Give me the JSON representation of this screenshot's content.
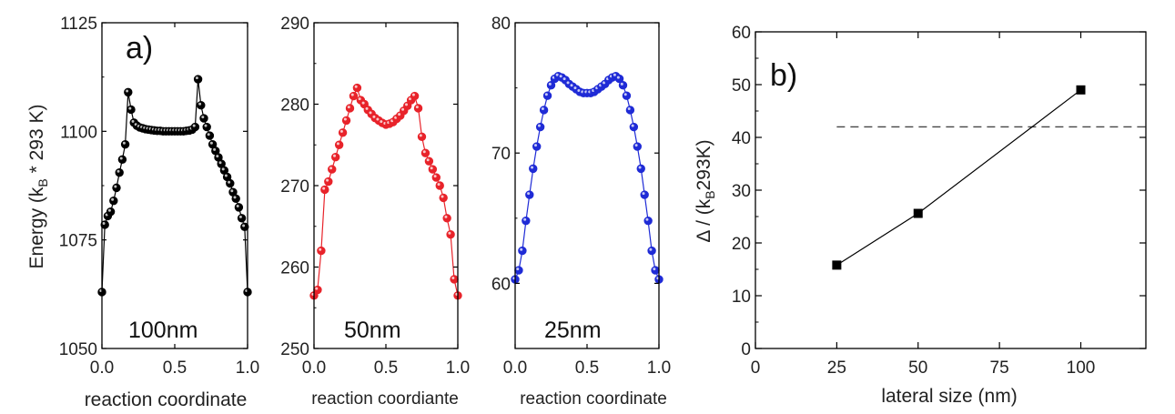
{
  "chart_data": [
    {
      "type": "line",
      "panel_label": "a)",
      "ylabel_main": "Energy (k",
      "ylabel_sub": "B",
      "ylabel_rest": " * 293 K)",
      "xlabel": "reaction coordinate",
      "annotation": "100nm",
      "xlim": [
        0.0,
        1.0
      ],
      "ylim": [
        1050,
        1125
      ],
      "xticks": [
        "0.0",
        "0.5",
        "1.0"
      ],
      "yticks": [
        "1050",
        "1075",
        "1100",
        "1125"
      ],
      "series": [
        {
          "color": "#000000",
          "x": [
            0.0,
            0.02,
            0.04,
            0.06,
            0.08,
            0.1,
            0.12,
            0.14,
            0.16,
            0.18,
            0.2,
            0.22,
            0.24,
            0.26,
            0.28,
            0.3,
            0.32,
            0.34,
            0.36,
            0.38,
            0.4,
            0.42,
            0.44,
            0.46,
            0.48,
            0.5,
            0.52,
            0.54,
            0.56,
            0.58,
            0.6,
            0.62,
            0.64,
            0.66,
            0.68,
            0.7,
            0.72,
            0.74,
            0.76,
            0.78,
            0.8,
            0.82,
            0.84,
            0.86,
            0.88,
            0.9,
            0.92,
            0.94,
            0.96,
            0.98,
            1.0
          ],
          "y": [
            1063.0,
            1078.5,
            1080.5,
            1081.5,
            1084.0,
            1087.0,
            1090.5,
            1093.5,
            1097.0,
            1109.0,
            1105.0,
            1102.0,
            1101.3,
            1100.9,
            1100.7,
            1100.5,
            1100.4,
            1100.3,
            1100.2,
            1100.1,
            1100.1,
            1100.0,
            1100.0,
            1100.0,
            1100.0,
            1100.0,
            1100.0,
            1100.0,
            1100.0,
            1100.1,
            1100.2,
            1100.4,
            1101.0,
            1112.0,
            1106.0,
            1103.0,
            1101.0,
            1099.0,
            1097.0,
            1095.5,
            1094.0,
            1092.5,
            1091.0,
            1089.5,
            1088.0,
            1086.0,
            1084.5,
            1082.5,
            1080.0,
            1078.0,
            1063.0
          ]
        }
      ]
    },
    {
      "type": "line",
      "xlabel": "reaction coordiante",
      "annotation": "50nm",
      "xlim": [
        0.0,
        1.0
      ],
      "ylim": [
        250,
        290
      ],
      "xticks": [
        "0.0",
        "0.5",
        "1.0"
      ],
      "yticks": [
        "250",
        "260",
        "270",
        "280",
        "290"
      ],
      "series": [
        {
          "color": "#e8232a",
          "x": [
            0.0,
            0.025,
            0.05,
            0.075,
            0.1,
            0.125,
            0.15,
            0.175,
            0.2,
            0.225,
            0.25,
            0.275,
            0.3,
            0.325,
            0.35,
            0.375,
            0.4,
            0.425,
            0.45,
            0.475,
            0.5,
            0.525,
            0.55,
            0.575,
            0.6,
            0.625,
            0.65,
            0.675,
            0.7,
            0.725,
            0.75,
            0.775,
            0.8,
            0.825,
            0.85,
            0.875,
            0.9,
            0.925,
            0.95,
            0.975,
            1.0
          ],
          "y": [
            256.5,
            257.2,
            262.0,
            269.5,
            270.5,
            272.0,
            273.5,
            275.0,
            276.5,
            278.0,
            279.5,
            281.0,
            282.0,
            280.5,
            280.0,
            279.3,
            278.8,
            278.3,
            278.0,
            277.7,
            277.5,
            277.6,
            277.8,
            278.2,
            278.6,
            279.2,
            279.8,
            280.5,
            281.0,
            279.5,
            276.0,
            274.0,
            273.0,
            272.0,
            271.0,
            270.0,
            268.5,
            266.0,
            264.0,
            258.5,
            256.5
          ]
        }
      ]
    },
    {
      "type": "line",
      "xlabel": "reaction coordinate",
      "annotation": "25nm",
      "xlim": [
        0.0,
        1.0
      ],
      "ylim": [
        55,
        80
      ],
      "xticks": [
        "0.0",
        "0.5",
        "1.0"
      ],
      "yticks": [
        "60",
        "70",
        "80"
      ],
      "series": [
        {
          "color": "#1f2bd6",
          "x": [
            0.0,
            0.025,
            0.05,
            0.075,
            0.1,
            0.125,
            0.15,
            0.175,
            0.2,
            0.225,
            0.25,
            0.275,
            0.3,
            0.325,
            0.35,
            0.375,
            0.4,
            0.425,
            0.45,
            0.475,
            0.5,
            0.525,
            0.55,
            0.575,
            0.6,
            0.625,
            0.65,
            0.675,
            0.7,
            0.725,
            0.75,
            0.775,
            0.8,
            0.825,
            0.85,
            0.875,
            0.9,
            0.925,
            0.95,
            0.975,
            1.0
          ],
          "y": [
            60.3,
            61.0,
            62.5,
            64.8,
            66.8,
            68.8,
            70.5,
            72.0,
            73.3,
            74.4,
            75.2,
            75.7,
            75.9,
            75.8,
            75.6,
            75.3,
            75.1,
            74.9,
            74.7,
            74.6,
            74.6,
            74.6,
            74.7,
            74.9,
            75.1,
            75.3,
            75.6,
            75.8,
            75.9,
            75.7,
            75.2,
            74.4,
            73.3,
            72.0,
            70.5,
            68.8,
            66.8,
            64.8,
            62.5,
            61.0,
            60.3
          ]
        }
      ]
    },
    {
      "type": "scatter",
      "panel_label": "b)",
      "xlabel": "lateral size (nm)",
      "ylabel_main": "Δ / (k",
      "ylabel_sub": "B",
      "ylabel_rest": "293K)",
      "xlim": [
        0,
        120
      ],
      "ylim": [
        0,
        60
      ],
      "xticks": [
        "0",
        "25",
        "50",
        "75",
        "100"
      ],
      "yticks": [
        "0",
        "10",
        "20",
        "30",
        "40",
        "50",
        "60"
      ],
      "grid": false,
      "series": [
        {
          "x": [
            25,
            50,
            100
          ],
          "y": [
            15.8,
            25.6,
            49.0
          ],
          "color": "#000000"
        }
      ],
      "reference_line": {
        "y": 42,
        "x_range": [
          25,
          120
        ],
        "style": "dashed",
        "color": "#444444"
      }
    }
  ]
}
